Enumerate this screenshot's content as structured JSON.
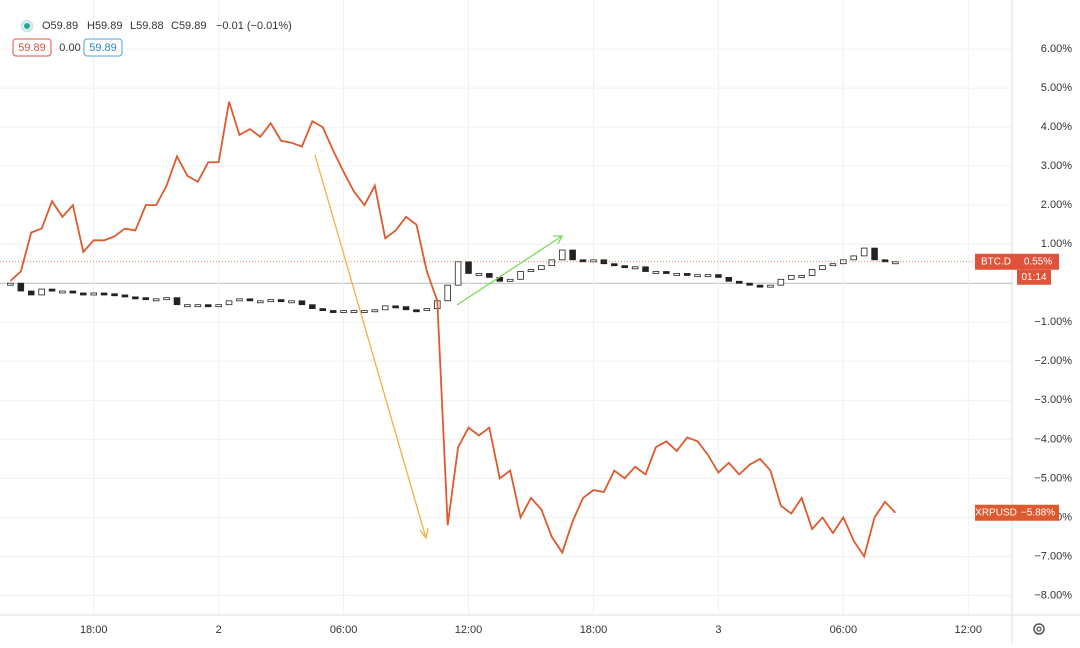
{
  "header": {
    "open": "O59.89",
    "high": "H59.89",
    "low": "L59.88",
    "close": "C59.89",
    "change": "−0.01 (−0.01%)",
    "badges": [
      "59.89",
      "0.00",
      "59.89"
    ]
  },
  "chart_data": {
    "type": "line",
    "x": [
      14,
      14.5,
      15,
      15.5,
      16,
      16.5,
      17,
      17.5,
      18,
      18.5,
      19,
      19.5,
      20,
      20.5,
      21,
      21.5,
      22,
      22.5,
      23,
      23.5,
      24,
      24.5,
      25,
      25.5,
      26,
      26.5,
      27,
      27.5,
      28,
      28.5,
      29,
      29.5,
      30,
      30.5,
      31,
      31.5,
      32,
      32.5,
      33,
      33.5,
      34,
      34.5,
      35,
      35.5,
      36,
      36.5,
      37,
      37.5,
      38,
      38.5,
      39,
      39.5,
      40,
      40.5,
      41,
      41.5,
      42,
      42.5,
      43,
      43.5,
      44,
      44.5,
      45,
      45.5,
      46,
      46.5,
      47,
      47.5,
      48,
      48.5,
      49,
      49.5,
      50,
      50.5,
      51,
      51.5,
      52,
      52.5,
      53,
      53.5,
      54,
      54.5,
      55,
      55.5,
      56,
      56.5
    ],
    "xlim": [
      13.5,
      62.1
    ],
    "xticks": [
      {
        "value": 18,
        "label": "18:00"
      },
      {
        "value": 24,
        "label": "2"
      },
      {
        "value": 30,
        "label": "06:00"
      },
      {
        "value": 36,
        "label": "12:00"
      },
      {
        "value": 42,
        "label": "18:00"
      },
      {
        "value": 48,
        "label": "3"
      },
      {
        "value": 54,
        "label": "06:00"
      },
      {
        "value": 60,
        "label": "12:00"
      }
    ],
    "ylim": [
      -8.5,
      7.0
    ],
    "yticks": [
      {
        "value": 6,
        "label": "6.00%"
      },
      {
        "value": 5,
        "label": "5.00%"
      },
      {
        "value": 4,
        "label": "4.00%"
      },
      {
        "value": 3,
        "label": "3.00%"
      },
      {
        "value": 2,
        "label": "2.00%"
      },
      {
        "value": 1,
        "label": "1.00%"
      },
      {
        "value": -1,
        "label": "−1.00%"
      },
      {
        "value": -2,
        "label": "−2.00%"
      },
      {
        "value": -3,
        "label": "−3.00%"
      },
      {
        "value": -4,
        "label": "−4.00%"
      },
      {
        "value": -5,
        "label": "−5.00%"
      },
      {
        "value": -6,
        "label": "−6.00%"
      },
      {
        "value": -7,
        "label": "−7.00%"
      },
      {
        "value": -8,
        "label": "−8.00%"
      }
    ],
    "grid": true,
    "countdown": "01:14",
    "series": [
      {
        "name": "BTC.D",
        "style": "candles",
        "color": "#e0533b",
        "last_label": "0.55%",
        "values": [
          0.0,
          -0.2,
          -0.3,
          -0.15,
          -0.2,
          -0.2,
          -0.25,
          -0.27,
          -0.25,
          -0.27,
          -0.3,
          -0.35,
          -0.37,
          -0.4,
          -0.4,
          -0.37,
          -0.55,
          -0.55,
          -0.55,
          -0.6,
          -0.55,
          -0.45,
          -0.4,
          -0.45,
          -0.45,
          -0.42,
          -0.45,
          -0.45,
          -0.55,
          -0.65,
          -0.7,
          -0.73,
          -0.7,
          -0.7,
          -0.7,
          -0.68,
          -0.58,
          -0.6,
          -0.68,
          -0.7,
          -0.65,
          -0.45,
          -0.05,
          0.55,
          0.25,
          0.25,
          0.15,
          0.05,
          0.1,
          0.3,
          0.35,
          0.45,
          0.6,
          0.85,
          0.6,
          0.55,
          0.6,
          0.5,
          0.45,
          0.42,
          0.42,
          0.3,
          0.3,
          0.25,
          0.25,
          0.2,
          0.22,
          0.22,
          0.15,
          0.05,
          0.0,
          -0.05,
          -0.1,
          -0.05,
          0.1,
          0.2,
          0.2,
          0.35,
          0.45,
          0.5,
          0.6,
          0.7,
          0.9,
          0.6,
          0.55,
          0.55
        ]
      },
      {
        "name": "XRPUSD",
        "style": "line",
        "color": "#dd5a2e",
        "last_label": "−5.88%",
        "values": [
          0.06,
          0.3,
          1.3,
          1.4,
          2.1,
          1.7,
          2.0,
          0.8,
          1.1,
          1.1,
          1.2,
          1.4,
          1.35,
          2.0,
          2.0,
          2.5,
          3.25,
          2.75,
          2.6,
          3.1,
          3.1,
          4.65,
          3.8,
          3.95,
          3.75,
          4.1,
          3.65,
          3.6,
          3.5,
          4.15,
          4.0,
          3.4,
          2.85,
          2.35,
          2.0,
          2.5,
          1.15,
          1.35,
          1.7,
          1.5,
          0.3,
          -0.45,
          -6.2,
          -4.2,
          -3.7,
          -3.9,
          -3.7,
          -5.0,
          -4.8,
          -6.0,
          -5.5,
          -5.8,
          -6.5,
          -6.9,
          -6.1,
          -5.5,
          -5.3,
          -5.35,
          -4.8,
          -5.0,
          -4.7,
          -4.9,
          -4.2,
          -4.05,
          -4.3,
          -3.95,
          -4.05,
          -4.4,
          -4.85,
          -4.6,
          -4.9,
          -4.65,
          -4.5,
          -4.8,
          -5.7,
          -5.9,
          -5.5,
          -6.3,
          -6.0,
          -6.4,
          -6.0,
          -6.6,
          -7.0,
          -6.0,
          -5.6,
          -5.88
        ]
      }
    ]
  }
}
